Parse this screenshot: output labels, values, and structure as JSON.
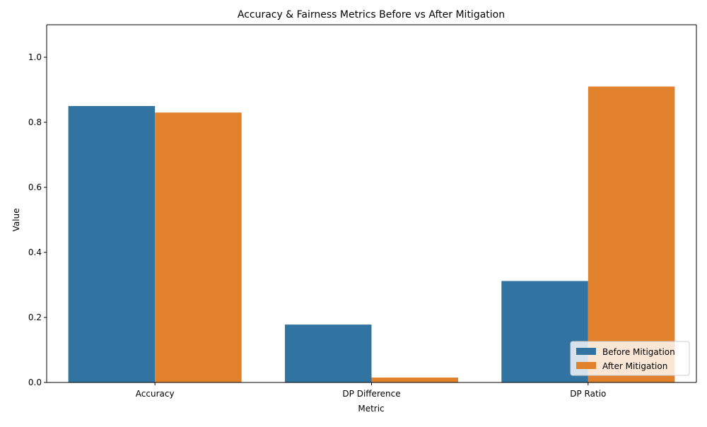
{
  "chart_data": {
    "type": "bar",
    "title": "Accuracy & Fairness Metrics Before vs After Mitigation",
    "xlabel": "Metric",
    "ylabel": "Value",
    "categories": [
      "Accuracy",
      "DP Difference",
      "DP Ratio"
    ],
    "series": [
      {
        "name": "Before Mitigation",
        "color": "#3274a1",
        "values": [
          0.85,
          0.178,
          0.312
        ]
      },
      {
        "name": "After Mitigation",
        "color": "#e1812c",
        "values": [
          0.83,
          0.015,
          0.91
        ]
      }
    ],
    "ylim": [
      0,
      1.1
    ],
    "yticks": [
      0.0,
      0.2,
      0.4,
      0.6,
      0.8,
      1.0
    ],
    "ytick_labels": [
      "0.0",
      "0.2",
      "0.4",
      "0.6",
      "0.8",
      "1.0"
    ],
    "grid": false,
    "legend_position": "bottom-right"
  }
}
